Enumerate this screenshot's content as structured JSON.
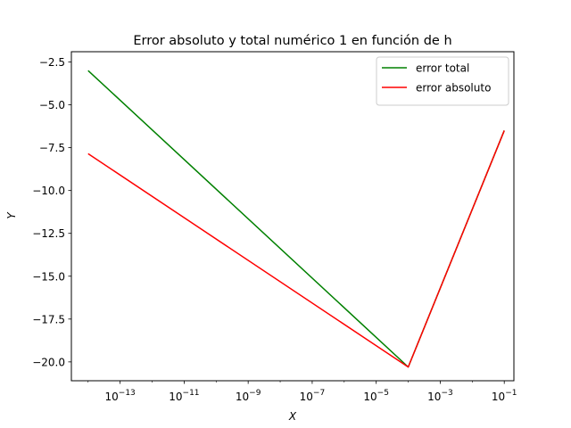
{
  "chart_data": {
    "type": "line",
    "title": "Error absoluto y total numérico 1 en función de h",
    "xlabel": "X",
    "ylabel": "Y",
    "xscale": "log",
    "xlim": [
      3e-15,
      0.2
    ],
    "ylim": [
      -21.1,
      -1.9
    ],
    "x_ticks": [
      {
        "value": 1e-13,
        "base": "10",
        "exp": "−13"
      },
      {
        "value": 1e-11,
        "base": "10",
        "exp": "−11"
      },
      {
        "value": 1e-09,
        "base": "10",
        "exp": "−9"
      },
      {
        "value": 1e-07,
        "base": "10",
        "exp": "−7"
      },
      {
        "value": 1e-05,
        "base": "10",
        "exp": "−5"
      },
      {
        "value": 0.001,
        "base": "10",
        "exp": "−3"
      },
      {
        "value": 0.1,
        "base": "10",
        "exp": "−1"
      }
    ],
    "y_ticks": [
      {
        "value": -2.5,
        "label": "−2.5"
      },
      {
        "value": -5.0,
        "label": "−5.0"
      },
      {
        "value": -7.5,
        "label": "−7.5"
      },
      {
        "value": -10.0,
        "label": "−10.0"
      },
      {
        "value": -12.5,
        "label": "−12.5"
      },
      {
        "value": -15.0,
        "label": "−15.0"
      },
      {
        "value": -17.5,
        "label": "−17.5"
      },
      {
        "value": -20.0,
        "label": "−20.0"
      }
    ],
    "legend_position": "top-right",
    "grid": false,
    "series": [
      {
        "name": "error total",
        "color": "#008000",
        "x": [
          1e-14,
          0.0001,
          0.1
        ],
        "y": [
          -3.0,
          -20.3,
          -6.5
        ]
      },
      {
        "name": "error absoluto",
        "color": "#ff0000",
        "x": [
          1e-14,
          0.0001,
          0.1
        ],
        "y": [
          -7.85,
          -20.3,
          -6.5
        ]
      }
    ]
  }
}
